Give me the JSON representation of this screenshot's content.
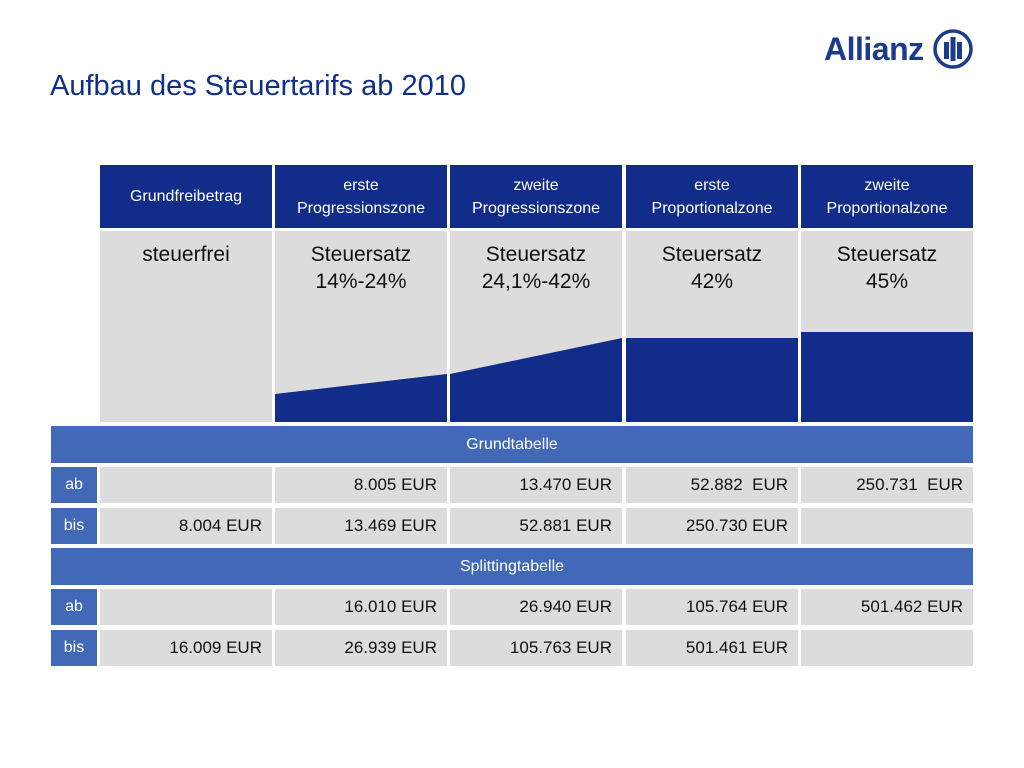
{
  "title": "Aufbau des Steuertarifs ab 2010",
  "logo": {
    "wordmark": "Allianz",
    "brand_color": "#1c3b8f"
  },
  "colors": {
    "header": "#122c8a",
    "band": "#4169b8",
    "cell": "#dcdcdc",
    "fill": "#122c8a"
  },
  "columns": [
    {
      "header": [
        "Grundfreibetrag"
      ],
      "text": [
        "steuerfrei"
      ]
    },
    {
      "header": [
        "erste",
        "Progressionszone"
      ],
      "text": [
        "Steuersatz",
        "14%-24%"
      ]
    },
    {
      "header": [
        "zweite",
        "Progressionszone"
      ],
      "text": [
        "Steuersatz",
        "24,1%-42%"
      ]
    },
    {
      "header": [
        "erste",
        "Proportionalzone"
      ],
      "text": [
        "Steuersatz",
        "42%"
      ]
    },
    {
      "header": [
        "zweite",
        "Proportionalzone"
      ],
      "text": [
        "Steuersatz",
        "45%"
      ]
    }
  ],
  "rate_levels": [
    {
      "from": 0,
      "to": 0
    },
    {
      "from": 14,
      "to": 24
    },
    {
      "from": 24,
      "to": 42
    },
    {
      "from": 42,
      "to": 42
    },
    {
      "from": 45,
      "to": 45
    }
  ],
  "grundtabelle": {
    "title": "Grundtabelle",
    "ab": {
      "label": "ab",
      "values": [
        "",
        "8.005 EUR",
        "13.470 EUR",
        "52.882  EUR",
        "250.731  EUR"
      ]
    },
    "bis": {
      "label": "bis",
      "values": [
        "8.004 EUR",
        "13.469 EUR",
        "52.881 EUR",
        "250.730 EUR",
        ""
      ]
    }
  },
  "splittingtabelle": {
    "title": "Splittingtabelle",
    "ab": {
      "label": "ab",
      "values": [
        "",
        "16.010 EUR",
        "26.940 EUR",
        "105.764 EUR",
        "501.462 EUR"
      ]
    },
    "bis": {
      "label": "bis",
      "values": [
        "16.009 EUR",
        "26.939 EUR",
        "105.763 EUR",
        "501.461 EUR",
        ""
      ]
    }
  }
}
